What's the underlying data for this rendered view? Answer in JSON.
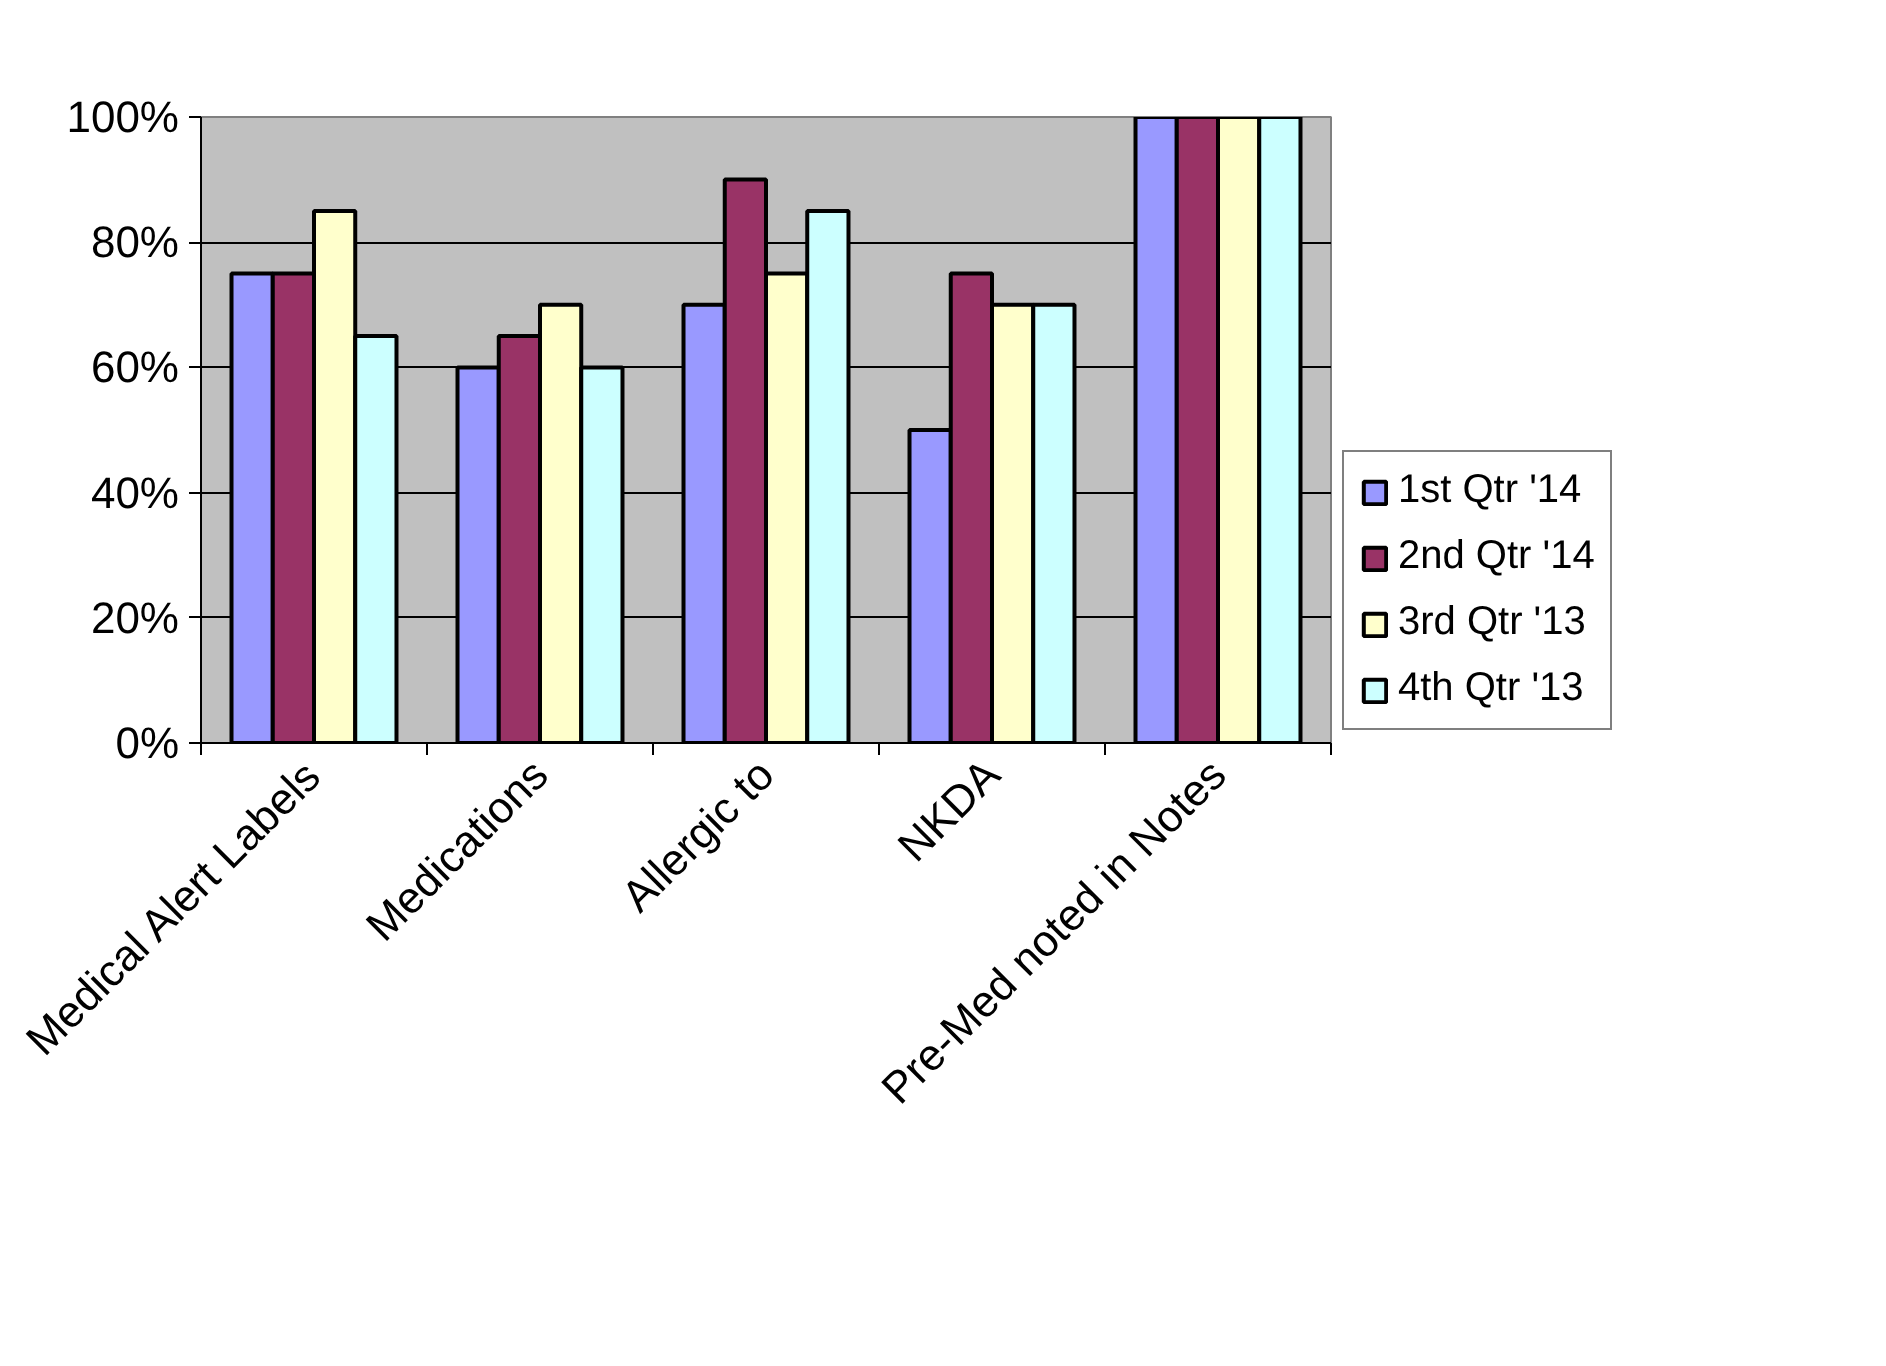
{
  "chart_data": {
    "type": "bar",
    "categories": [
      "Medical Alert Labels",
      "Medications",
      "Allergic to",
      "NKDA",
      "Pre-Med noted in Notes"
    ],
    "series": [
      {
        "name": "1st Qtr '14",
        "color": "#9999ff",
        "values": [
          75,
          60,
          70,
          50,
          100
        ]
      },
      {
        "name": "2nd Qtr '14",
        "color": "#993366",
        "values": [
          75,
          65,
          90,
          75,
          100
        ]
      },
      {
        "name": "3rd Qtr '13",
        "color": "#ffffcc",
        "values": [
          85,
          70,
          75,
          70,
          100
        ]
      },
      {
        "name": "4th Qtr '13",
        "color": "#ccffff",
        "values": [
          65,
          60,
          85,
          70,
          100
        ]
      }
    ],
    "ylim": [
      0,
      100
    ],
    "yticks": [
      {
        "value": 0,
        "label": "0%"
      },
      {
        "value": 20,
        "label": "20%"
      },
      {
        "value": 40,
        "label": "40%"
      },
      {
        "value": 60,
        "label": "60%"
      },
      {
        "value": 80,
        "label": "80%"
      },
      {
        "value": 100,
        "label": "100%"
      }
    ],
    "grid": "y",
    "legend": "right"
  }
}
